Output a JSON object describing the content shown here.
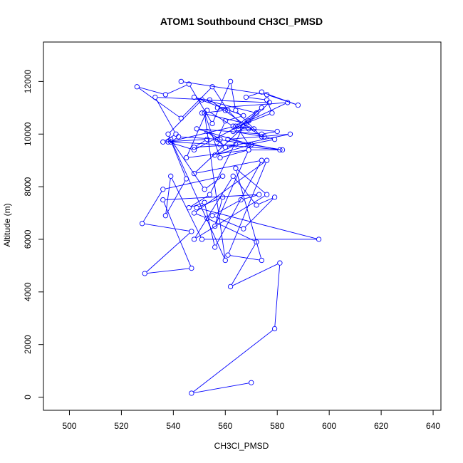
{
  "chart_data": {
    "type": "line",
    "title": "ATOM1 Southbound CH3Cl_PMSD",
    "xlabel": "CH3Cl_PMSD",
    "ylabel": "Altitude (m)",
    "xlim": [
      490,
      643
    ],
    "ylim": [
      -500,
      13500
    ],
    "xticks": [
      500,
      520,
      540,
      560,
      580,
      600,
      620,
      640
    ],
    "yticks": [
      0,
      2000,
      4000,
      6000,
      8000,
      10000,
      12000
    ],
    "markers": "open-circle",
    "grid": false,
    "legend": "none",
    "colors": {
      "series": "#0000ff",
      "axes": "#000000",
      "background": "#ffffff"
    },
    "series": [
      {
        "x": [
          570,
          547,
          579,
          581,
          562,
          572,
          553,
          548,
          576,
          561,
          574,
          564,
          576,
          548,
          563,
          572,
          579,
          567,
          555,
          566,
          573,
          536,
          547,
          529,
          547,
          528,
          536,
          559,
          552,
          539,
          560,
          552,
          558,
          569,
          556,
          559,
          549,
          596,
          551,
          539,
          537,
          545,
          538,
          551,
          577,
          548,
          574,
          556,
          552,
          546,
          554,
          567,
          561,
          555,
          543,
          526,
          537,
          546,
          555,
          562,
          564,
          574,
          554,
          533,
          541,
          536,
          553,
          548,
          564,
          556,
          570,
          549,
          574,
          580,
          569,
          563,
          553,
          545,
          569,
          581,
          561,
          585,
          560,
          553,
          558,
          542,
          539,
          558,
          582,
          557,
          560,
          567,
          548,
          572,
          568,
          551,
          560,
          557,
          584,
          569,
          548,
          538,
          564,
          574,
          565,
          569,
          579,
          575,
          563,
          571,
          565,
          578,
          576,
          568,
          574,
          588,
          576,
          543
        ],
        "y": [
          550,
          150,
          2600,
          5100,
          4200,
          5900,
          6800,
          7000,
          9000,
          5400,
          5200,
          8700,
          7700,
          6000,
          8400,
          7300,
          7600,
          6400,
          6900,
          7500,
          7700,
          7500,
          4900,
          4700,
          6300,
          6600,
          7900,
          8400,
          7900,
          9800,
          5200,
          10800,
          9100,
          9400,
          6500,
          7600,
          7200,
          6000,
          6000,
          8400,
          6900,
          8300,
          10000,
          11300,
          11200,
          8500,
          9000,
          5700,
          7400,
          7200,
          7700,
          10300,
          10900,
          11800,
          10600,
          11800,
          11500,
          11900,
          10400,
          12000,
          10900,
          9900,
          11300,
          11400,
          10000,
          9700,
          9800,
          9500,
          9600,
          9200,
          9600,
          10200,
          10000,
          10100,
          10200,
          10300,
          10900,
          9100,
          9400,
          9400,
          9800,
          10000,
          9500,
          10100,
          9800,
          9900,
          9700,
          9600,
          9400,
          9800,
          10500,
          10700,
          11400,
          10800,
          10400,
          10800,
          10900,
          11000,
          11200,
          10500,
          9400,
          9700,
          10300,
          11000,
          10200,
          9600,
          9800,
          9900,
          10100,
          10200,
          10300,
          10800,
          11300,
          11400,
          11600,
          11100,
          11500,
          12000
        ]
      }
    ]
  }
}
